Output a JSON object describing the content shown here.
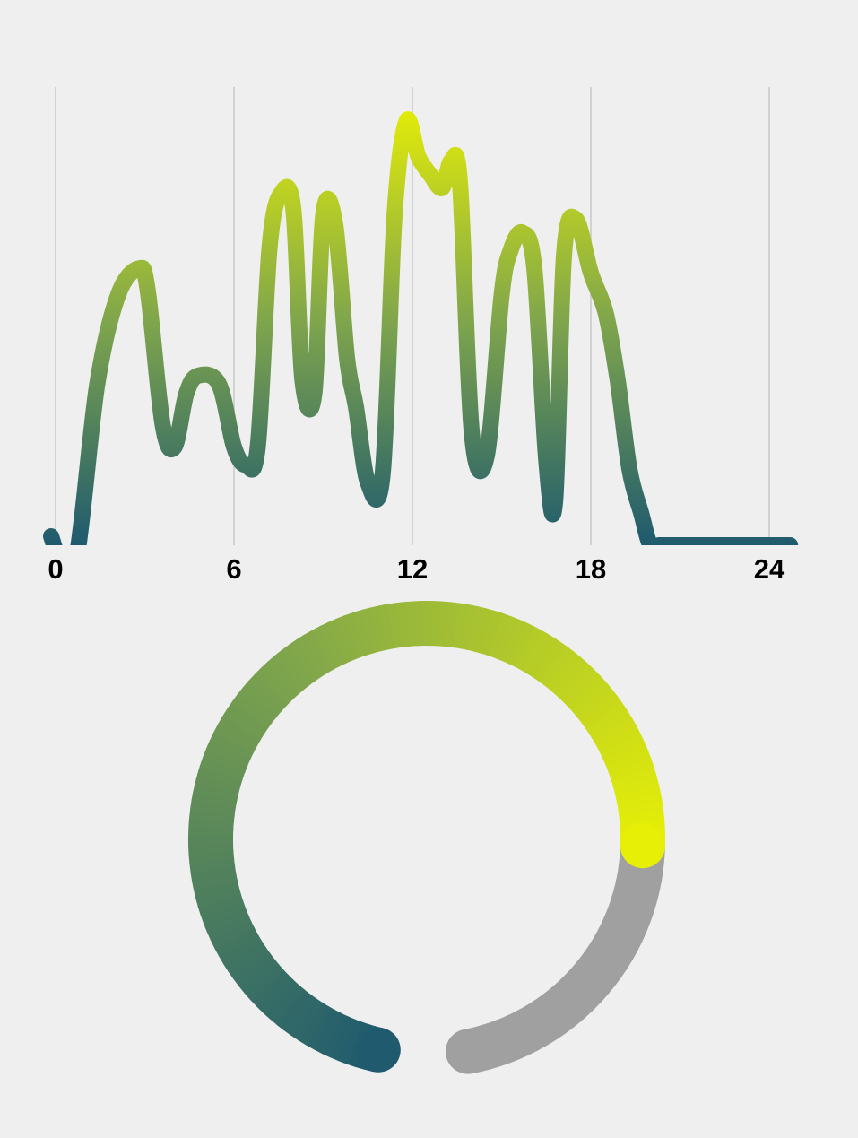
{
  "chart_data": [
    {
      "type": "line",
      "title": "",
      "xlabel": "",
      "ylabel": "",
      "xlim": [
        0,
        24
      ],
      "ylim": [
        0,
        1
      ],
      "grid": true,
      "x_ticks": [
        0,
        6,
        12,
        18,
        24
      ],
      "x_tick_labels": [
        "0",
        "6",
        "12",
        "18",
        "24"
      ],
      "series": [
        {
          "x": [
            -0.15,
            0.2,
            0.7,
            1.4,
            2.1,
            2.8,
            3.1,
            3.6,
            4.0,
            4.4,
            4.8,
            5.5,
            6.0,
            6.4,
            6.8,
            7.2,
            7.6,
            8.0,
            8.3,
            8.7,
            9.0,
            9.4,
            9.8,
            10.1,
            10.5,
            11.0,
            11.4,
            11.8,
            12.2,
            12.6,
            13.0,
            13.3,
            13.6,
            14.0,
            14.5,
            15.0,
            15.3,
            15.7,
            16.1,
            16.5,
            16.8,
            17.1,
            17.5,
            18.0,
            18.5,
            18.9,
            19.3,
            19.7,
            20.0,
            20.3,
            20.7,
            21.1,
            21.5,
            21.9,
            22.3,
            22.7,
            23.1,
            23.5,
            23.9,
            24.2,
            24.7
          ],
          "y": [
            0.02,
            -0.04,
            -0.03,
            0.36,
            0.56,
            0.62,
            0.57,
            0.27,
            0.22,
            0.34,
            0.38,
            0.36,
            0.22,
            0.18,
            0.22,
            0.67,
            0.79,
            0.75,
            0.37,
            0.34,
            0.74,
            0.72,
            0.42,
            0.31,
            0.14,
            0.16,
            0.74,
            0.95,
            0.87,
            0.83,
            0.8,
            0.86,
            0.81,
            0.25,
            0.2,
            0.56,
            0.66,
            0.7,
            0.62,
            0.19,
            0.1,
            0.65,
            0.73,
            0.61,
            0.52,
            0.37,
            0.17,
            0.07,
            0.0,
            0.0,
            0.0,
            0.0,
            0.0,
            0.0,
            0.0,
            0.0,
            0.0,
            0.0,
            0.0,
            0.0,
            0.0
          ]
        }
      ],
      "colors": {
        "gradient_low": "#1f5a6e",
        "gradient_high": "#e7ef06",
        "grid": "#c8c8c8"
      }
    },
    {
      "type": "gauge",
      "value": 0.77,
      "colors": {
        "start": "#1f5a6e",
        "mid": "#7fa54c",
        "end": "#e7ef06",
        "track": "#a0a0a0"
      }
    }
  ]
}
